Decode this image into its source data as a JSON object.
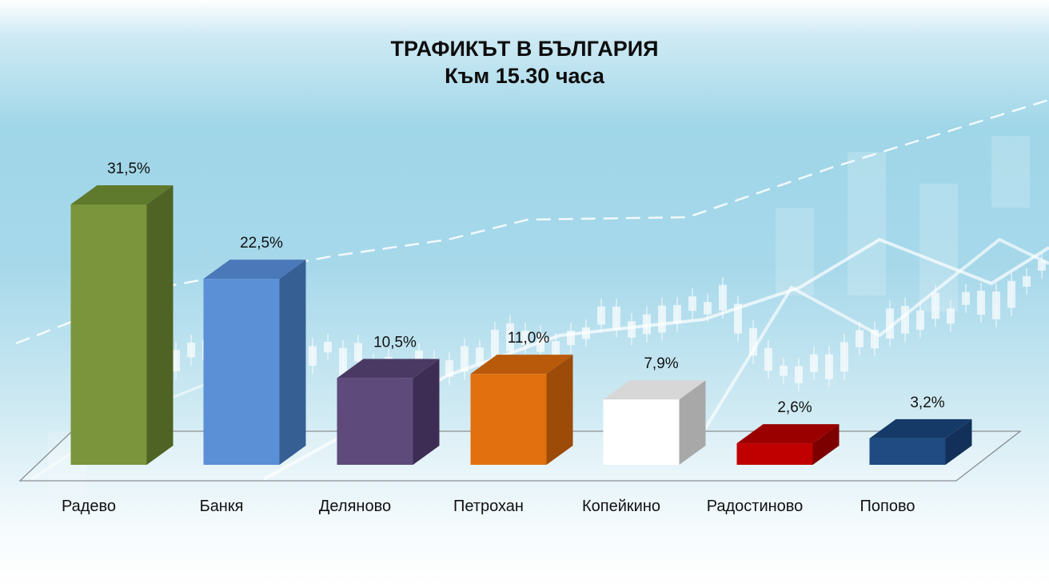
{
  "chart_data": {
    "type": "bar",
    "title": "ТРАФИКЪТ В БЪЛГАРИЯ",
    "subtitle": "Към 15.30 часа",
    "categories": [
      "Радево",
      "Банкя",
      "Деляново",
      "Петрохан",
      "Копейкино",
      "Радостиново",
      "Попово"
    ],
    "values": [
      31.5,
      22.5,
      10.5,
      11.0,
      7.9,
      2.6,
      3.2
    ],
    "value_labels": [
      "31,5%",
      "22,5%",
      "10,5%",
      "11,0%",
      "7,9%",
      "2,6%",
      "3,2%"
    ],
    "colors": [
      "#7a953c",
      "#5b8fd6",
      "#5e4a7b",
      "#e2700f",
      "#ffffff",
      "#c00000",
      "#1f4a82"
    ],
    "side_colors": [
      "#4e6324",
      "#365f93",
      "#3d2d54",
      "#9c4b08",
      "#a8a8a8",
      "#7d0000",
      "#13305a"
    ],
    "top_colors": [
      "#5f7a2c",
      "#4a78b8",
      "#4a3a63",
      "#b95a0a",
      "#d7d7d7",
      "#9a0000",
      "#163a68"
    ],
    "grid": false,
    "legend": "none",
    "style": "3d"
  }
}
